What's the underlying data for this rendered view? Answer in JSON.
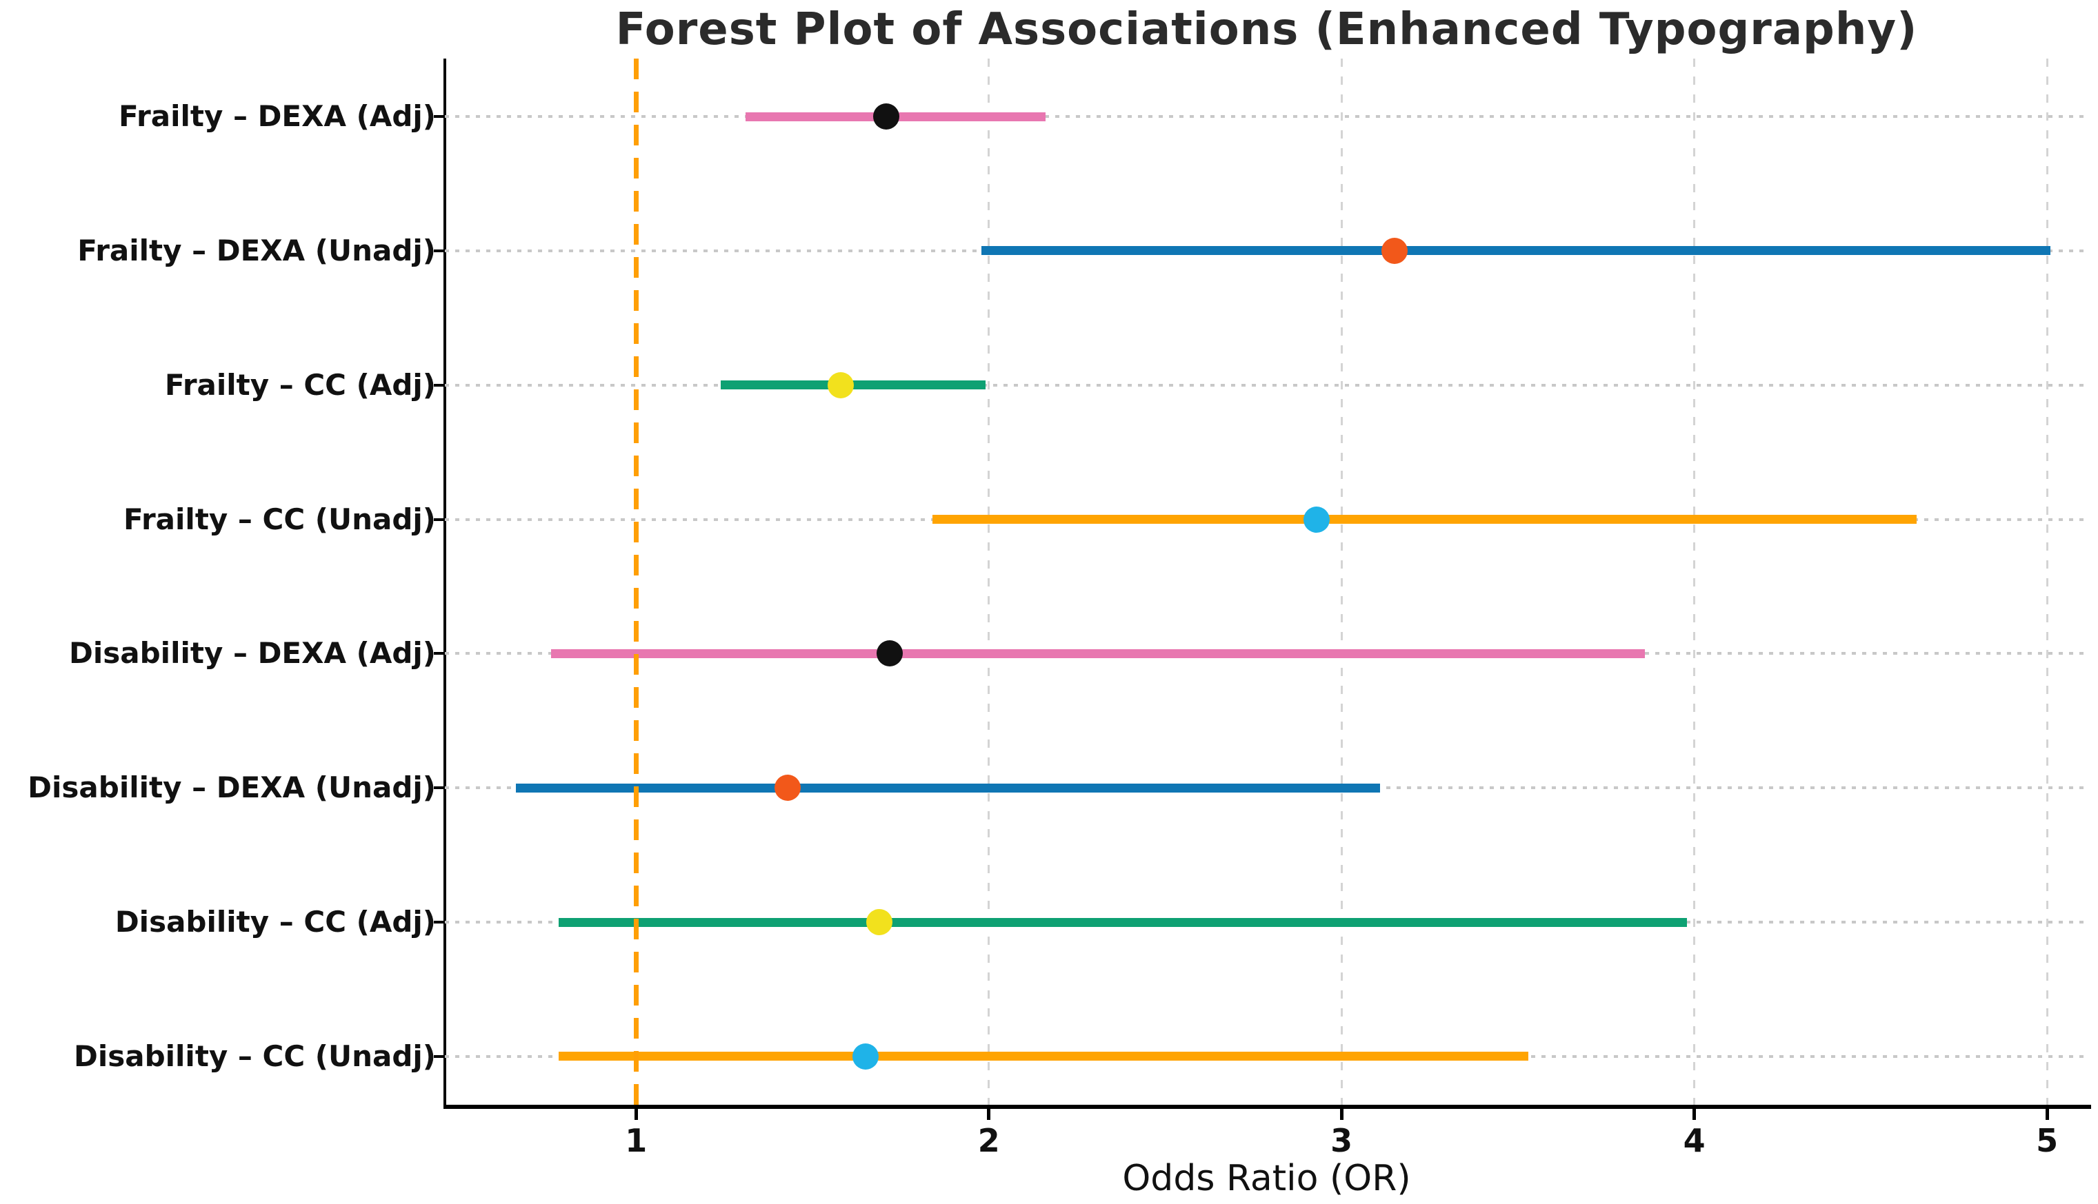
{
  "chart_data": {
    "type": "scatter",
    "variant": "forest-plot",
    "title": "Forest Plot of Associations (Enhanced Typography)",
    "xlabel": "Odds Ratio (OR)",
    "xlim": [
      0.458,
      5.117
    ],
    "x_ticks": [
      1,
      2,
      3,
      4,
      5
    ],
    "x_tick_labels": [
      "1",
      "2",
      "3",
      "4",
      "5"
    ],
    "grid": {
      "horizontal": "dotted",
      "vertical": "dashed"
    },
    "legend": "none",
    "reference_line": {
      "x": 1,
      "style": "dashed",
      "color": "#ff9f05"
    },
    "rows": [
      {
        "label": "Frailty – DEXA (Adj)",
        "or": 1.71,
        "ci_low": 1.31,
        "ci_high": 2.16,
        "line_color": "#e877b0",
        "marker_color": "#111111"
      },
      {
        "label": "Frailty – DEXA (Unadj)",
        "or": 3.15,
        "ci_low": 1.98,
        "ci_high": 5.01,
        "line_color": "#0f76b4",
        "marker_color": "#f2581a"
      },
      {
        "label": "Frailty – CC (Adj)",
        "or": 1.58,
        "ci_low": 1.24,
        "ci_high": 1.99,
        "line_color": "#0ea173",
        "marker_color": "#f2e11d"
      },
      {
        "label": "Frailty – CC (Unadj)",
        "or": 2.93,
        "ci_low": 1.84,
        "ci_high": 4.63,
        "line_color": "#ffa402",
        "marker_color": "#1fb3e8"
      },
      {
        "label": "Disability – DEXA (Adj)",
        "or": 1.72,
        "ci_low": 0.76,
        "ci_high": 3.86,
        "line_color": "#e877b0",
        "marker_color": "#111111"
      },
      {
        "label": "Disability – DEXA (Unadj)",
        "or": 1.43,
        "ci_low": 0.66,
        "ci_high": 3.11,
        "line_color": "#0f76b4",
        "marker_color": "#f2581a"
      },
      {
        "label": "Disability – CC (Adj)",
        "or": 1.69,
        "ci_low": 0.78,
        "ci_high": 3.98,
        "line_color": "#0ea173",
        "marker_color": "#f2e11d"
      },
      {
        "label": "Disability – CC (Unadj)",
        "or": 1.65,
        "ci_low": 0.78,
        "ci_high": 3.53,
        "line_color": "#ffa402",
        "marker_color": "#1fb3e8"
      }
    ],
    "axis_colors": {
      "spine": "#000000",
      "tick_label": "#111111",
      "title": "#2b2b2b",
      "h_grid": "#c8c8c8",
      "v_grid": "#d4d4d4"
    }
  }
}
